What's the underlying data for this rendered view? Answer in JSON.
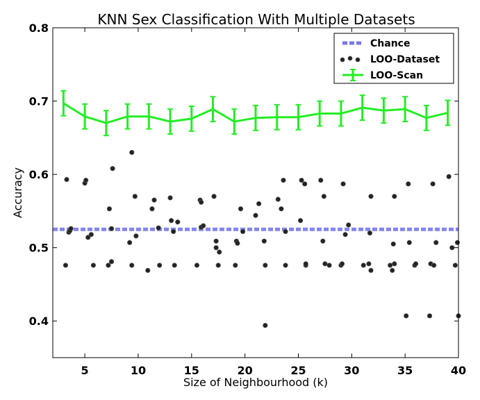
{
  "chart_data": {
    "type": "scatter",
    "title": "KNN Sex Classification With Multiple Datasets",
    "xlabel": "Size of Neighbourhood (k)",
    "ylabel": "Accuracy",
    "xlim": [
      2,
      40
    ],
    "ylim": [
      0.35,
      0.8
    ],
    "x_ticks": [
      5,
      10,
      15,
      20,
      25,
      30,
      35,
      40
    ],
    "y_ticks": [
      0.4,
      0.5,
      0.6,
      0.7,
      0.8
    ],
    "x_tick_labels": [
      "5",
      "10",
      "15",
      "20",
      "25",
      "30",
      "35",
      "40"
    ],
    "y_tick_labels": [
      "0.4",
      "0.5",
      "0.6",
      "0.7",
      "0.8"
    ],
    "grid": false,
    "legend_position": "top-right",
    "series": [
      {
        "name": "Chance",
        "kind": "hline",
        "color": "#7777ee",
        "y": 0.525
      },
      {
        "name": "LOO-Dataset",
        "kind": "scatter",
        "color": "#222222",
        "points": [
          [
            3.2,
            0.476
          ],
          [
            3.3,
            0.593
          ],
          [
            3.5,
            0.521
          ],
          [
            3.6,
            0.523
          ],
          [
            3.7,
            0.526
          ],
          [
            5.0,
            0.588
          ],
          [
            5.1,
            0.592
          ],
          [
            5.3,
            0.514
          ],
          [
            5.6,
            0.518
          ],
          [
            5.8,
            0.476
          ],
          [
            7.2,
            0.476
          ],
          [
            7.3,
            0.553
          ],
          [
            7.5,
            0.481
          ],
          [
            7.5,
            0.526
          ],
          [
            7.6,
            0.608
          ],
          [
            9.2,
            0.507
          ],
          [
            9.4,
            0.476
          ],
          [
            9.4,
            0.63
          ],
          [
            9.7,
            0.57
          ],
          [
            9.8,
            0.516
          ],
          [
            10.9,
            0.469
          ],
          [
            11.3,
            0.553
          ],
          [
            11.5,
            0.565
          ],
          [
            11.9,
            0.527
          ],
          [
            12.0,
            0.476
          ],
          [
            13.0,
            0.568
          ],
          [
            13.1,
            0.537
          ],
          [
            13.3,
            0.522
          ],
          [
            13.4,
            0.476
          ],
          [
            13.7,
            0.535
          ],
          [
            15.5,
            0.476
          ],
          [
            15.8,
            0.565
          ],
          [
            15.9,
            0.528
          ],
          [
            15.9,
            0.562
          ],
          [
            16.1,
            0.53
          ],
          [
            17.1,
            0.57
          ],
          [
            17.3,
            0.509
          ],
          [
            17.3,
            0.5
          ],
          [
            17.5,
            0.476
          ],
          [
            17.6,
            0.494
          ],
          [
            19.1,
            0.476
          ],
          [
            19.2,
            0.509
          ],
          [
            19.3,
            0.506
          ],
          [
            19.6,
            0.553
          ],
          [
            19.8,
            0.522
          ],
          [
            21.0,
            0.544
          ],
          [
            21.3,
            0.56
          ],
          [
            21.8,
            0.509
          ],
          [
            21.9,
            0.476
          ],
          [
            21.9,
            0.394
          ],
          [
            23.1,
            0.566
          ],
          [
            23.4,
            0.553
          ],
          [
            23.6,
            0.592
          ],
          [
            23.8,
            0.522
          ],
          [
            23.8,
            0.476
          ],
          [
            25.2,
            0.537
          ],
          [
            25.3,
            0.592
          ],
          [
            25.6,
            0.587
          ],
          [
            25.7,
            0.476
          ],
          [
            25.7,
            0.478
          ],
          [
            27.1,
            0.592
          ],
          [
            27.3,
            0.509
          ],
          [
            27.4,
            0.57
          ],
          [
            27.5,
            0.478
          ],
          [
            27.9,
            0.476
          ],
          [
            29.0,
            0.476
          ],
          [
            29.1,
            0.478
          ],
          [
            29.2,
            0.587
          ],
          [
            29.4,
            0.518
          ],
          [
            29.7,
            0.531
          ],
          [
            31.1,
            0.476
          ],
          [
            31.6,
            0.478
          ],
          [
            31.7,
            0.52
          ],
          [
            31.8,
            0.469
          ],
          [
            31.8,
            0.57
          ],
          [
            33.6,
            0.476
          ],
          [
            33.8,
            0.469
          ],
          [
            33.9,
            0.505
          ],
          [
            34.0,
            0.57
          ],
          [
            34.0,
            0.478
          ],
          [
            35.1,
            0.407
          ],
          [
            35.3,
            0.587
          ],
          [
            35.4,
            0.507
          ],
          [
            35.9,
            0.476
          ],
          [
            36.0,
            0.478
          ],
          [
            37.3,
            0.407
          ],
          [
            37.4,
            0.478
          ],
          [
            37.6,
            0.587
          ],
          [
            37.7,
            0.476
          ],
          [
            37.9,
            0.507
          ],
          [
            39.1,
            0.597
          ],
          [
            39.4,
            0.5
          ],
          [
            39.7,
            0.476
          ],
          [
            39.9,
            0.507
          ],
          [
            40.0,
            0.407
          ]
        ]
      },
      {
        "name": "LOO-Scan",
        "kind": "errorbar-line",
        "color": "#22ee22",
        "x": [
          3,
          5,
          7,
          9,
          11,
          13,
          15,
          17,
          19,
          21,
          23,
          25,
          27,
          29,
          31,
          33,
          35,
          37,
          39
        ],
        "y": [
          0.697,
          0.679,
          0.67,
          0.679,
          0.679,
          0.672,
          0.676,
          0.689,
          0.672,
          0.677,
          0.678,
          0.678,
          0.683,
          0.683,
          0.691,
          0.687,
          0.689,
          0.677,
          0.684
        ],
        "err": [
          0.017,
          0.017,
          0.017,
          0.017,
          0.017,
          0.017,
          0.017,
          0.017,
          0.017,
          0.017,
          0.017,
          0.017,
          0.017,
          0.017,
          0.017,
          0.017,
          0.017,
          0.017,
          0.017
        ]
      }
    ]
  }
}
